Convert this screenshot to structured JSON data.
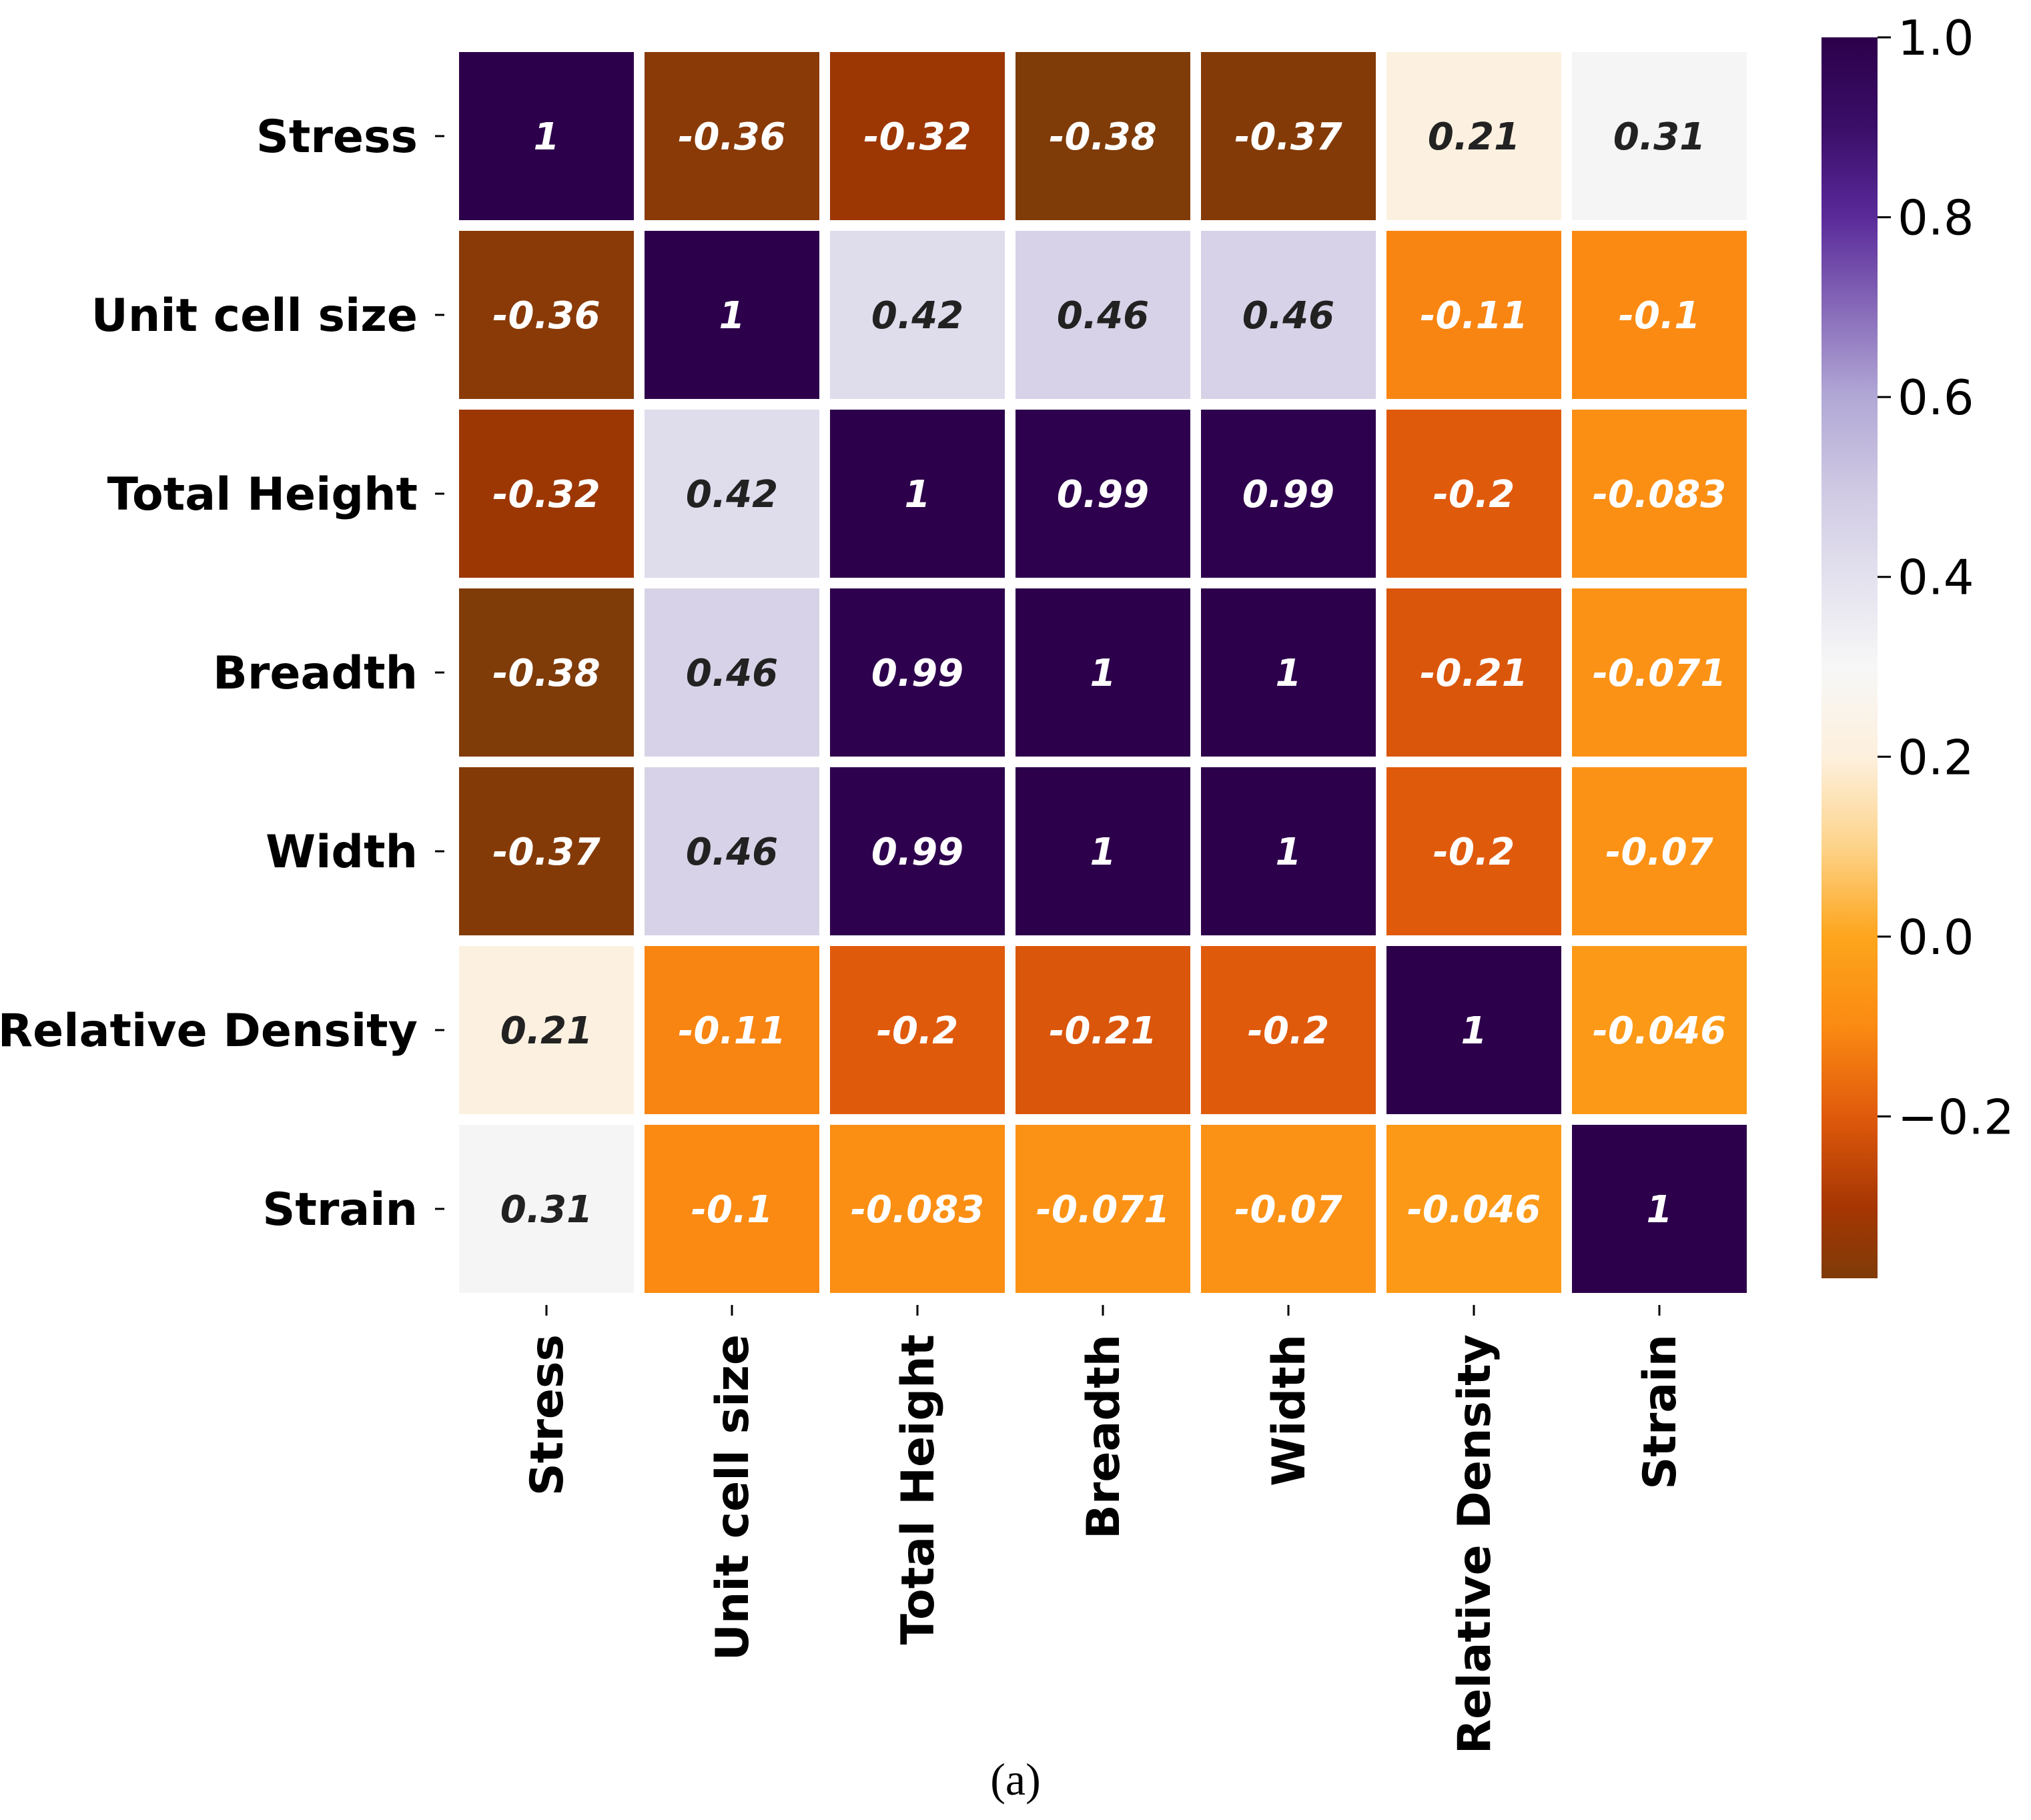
{
  "chart_data": {
    "type": "heatmap",
    "rows": [
      "Stress",
      "Unit cell size",
      "Total Height",
      "Breadth",
      "Width",
      "Relative Density",
      "Strain"
    ],
    "cols": [
      "Stress",
      "Unit cell size",
      "Total Height",
      "Breadth",
      "Width",
      "Relative Density",
      "Strain"
    ],
    "values": [
      [
        1,
        -0.36,
        -0.32,
        -0.38,
        -0.37,
        0.21,
        0.31
      ],
      [
        -0.36,
        1,
        0.42,
        0.46,
        0.46,
        -0.11,
        -0.1
      ],
      [
        -0.32,
        0.42,
        1,
        0.99,
        0.99,
        -0.2,
        -0.083
      ],
      [
        -0.38,
        0.46,
        0.99,
        1,
        1,
        -0.21,
        -0.071
      ],
      [
        -0.37,
        0.46,
        0.99,
        1,
        1,
        -0.2,
        -0.07
      ],
      [
        0.21,
        -0.11,
        -0.2,
        -0.21,
        -0.2,
        1,
        -0.046
      ],
      [
        0.31,
        -0.1,
        -0.083,
        -0.071,
        -0.07,
        -0.046,
        1
      ]
    ],
    "labels": [
      [
        "1",
        "-0.36",
        "-0.32",
        "-0.38",
        "-0.37",
        "0.21",
        "0.31"
      ],
      [
        "-0.36",
        "1",
        "0.42",
        "0.46",
        "0.46",
        "-0.11",
        "-0.1"
      ],
      [
        "-0.32",
        "0.42",
        "1",
        "0.99",
        "0.99",
        "-0.2",
        "-0.083"
      ],
      [
        "-0.38",
        "0.46",
        "0.99",
        "1",
        "1",
        "-0.21",
        "-0.071"
      ],
      [
        "-0.37",
        "0.46",
        "0.99",
        "1",
        "1",
        "-0.2",
        "-0.07"
      ],
      [
        "0.21",
        "-0.11",
        "-0.2",
        "-0.21",
        "-0.2",
        "1",
        "-0.046"
      ],
      [
        "0.31",
        "-0.1",
        "-0.083",
        "-0.071",
        "-0.07",
        "-0.046",
        "1"
      ]
    ],
    "colorbar": {
      "range": [
        -0.38,
        1.0
      ],
      "ticks": [
        1.0,
        0.8,
        0.6,
        0.4,
        0.2,
        0.0,
        -0.2
      ],
      "tick_labels": [
        "1.0",
        "0.8",
        "0.6",
        "0.4",
        "0.2",
        "0.0",
        "−0.2"
      ],
      "colormap": "PuOr"
    },
    "caption": "(a)"
  },
  "colors": {
    "colormap_stops": [
      {
        "v": -0.38,
        "color": "#7f3b08"
      },
      {
        "v": -0.3,
        "color": "#a63603"
      },
      {
        "v": -0.2,
        "color": "#e05a0c"
      },
      {
        "v": -0.1,
        "color": "#fb8a12"
      },
      {
        "v": 0.0,
        "color": "#fda51c"
      },
      {
        "v": 0.1,
        "color": "#fdd38a"
      },
      {
        "v": 0.2,
        "color": "#fdf0dd"
      },
      {
        "v": 0.3,
        "color": "#f7f7f7"
      },
      {
        "v": 0.4,
        "color": "#e3e1ee"
      },
      {
        "v": 0.5,
        "color": "#cfc8e3"
      },
      {
        "v": 0.6,
        "color": "#b2a8d6"
      },
      {
        "v": 0.8,
        "color": "#5a2a9a"
      },
      {
        "v": 0.9,
        "color": "#3a0e68"
      },
      {
        "v": 1.0,
        "color": "#2d004b"
      }
    ],
    "text_dark": "#222222",
    "text_light": "#ffffff",
    "gap": "#ffffff"
  }
}
